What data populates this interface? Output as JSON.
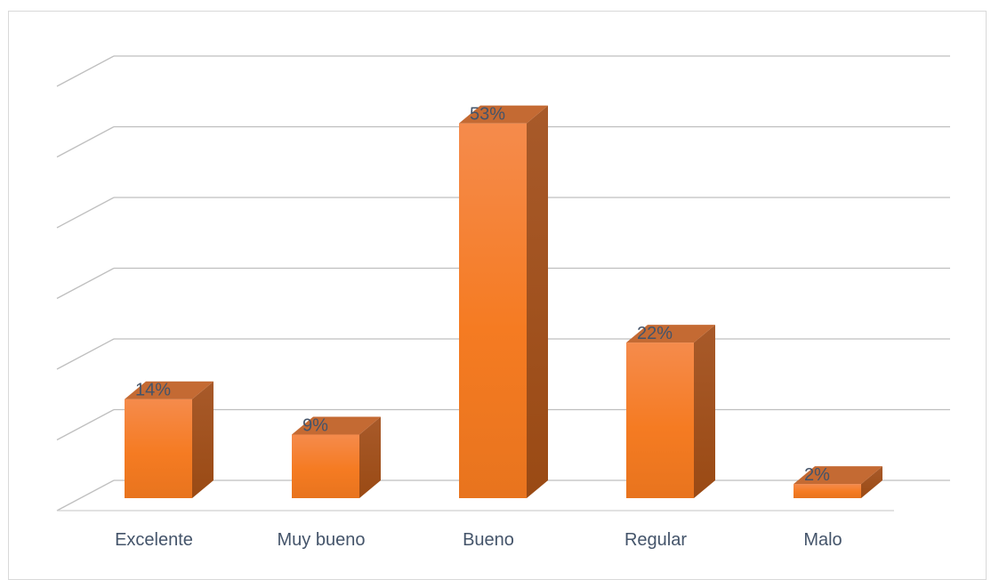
{
  "chart_data": {
    "type": "bar",
    "categories": [
      "Excelente",
      "Muy bueno",
      "Bueno",
      "Regular",
      "Malo"
    ],
    "values": [
      14,
      9,
      53,
      22,
      2
    ],
    "data_labels": [
      "14%",
      "9%",
      "53%",
      "22%",
      "2%"
    ],
    "unit": "%",
    "title": "",
    "xlabel": "",
    "ylabel": "",
    "ylim": [
      0,
      60
    ],
    "grid": true,
    "legend": "none",
    "style": "3d-column",
    "colors": {
      "bar_top": "#f58b4c",
      "bar_bottom": "#e8741e",
      "bar_side": "#a4501c",
      "bar_cap": "#c46a33",
      "gridline": "#bfbfbf",
      "label_text": "#44546a"
    }
  }
}
